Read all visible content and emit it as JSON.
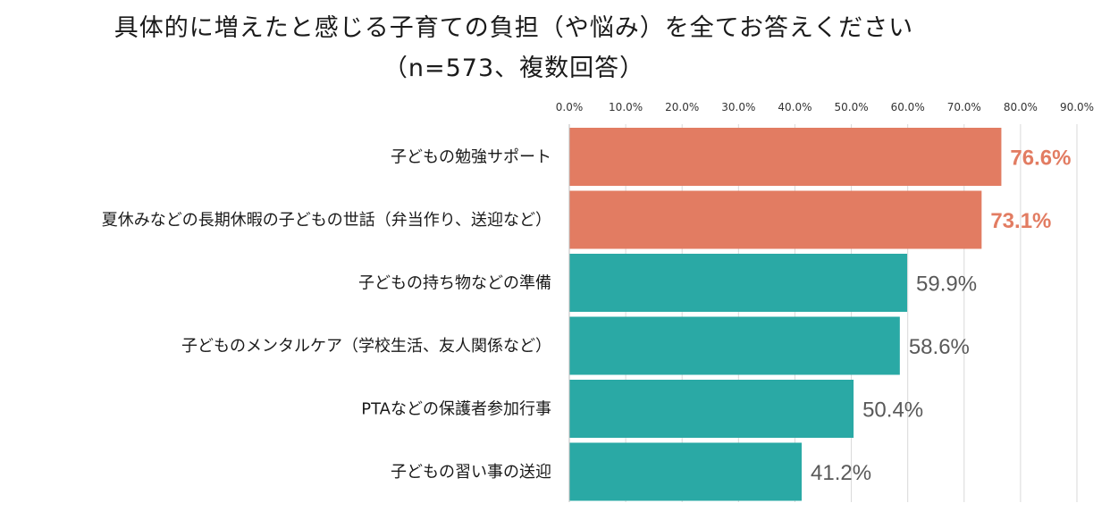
{
  "chart_data": {
    "type": "bar",
    "orientation": "horizontal",
    "title": "具体的に増えたと感じる子育ての負担（や悩み）を全てお答えください",
    "subtitle": "（n=573、複数回答）",
    "xlim": [
      0,
      90
    ],
    "ticks": [
      "0.0%",
      "10.0%",
      "20.0%",
      "30.0%",
      "40.0%",
      "50.0%",
      "60.0%",
      "70.0%",
      "80.0%",
      "90.0%"
    ],
    "grid": true,
    "categories": [
      "子どもの勉強サポート",
      "夏休みなどの長期休暇の子どもの世話（弁当作り、送迎など）",
      "子どもの持ち物などの準備",
      "子どものメンタルケア（学校生活、友人関係など）",
      "PTAなどの保護者参加行事",
      "子どもの習い事の送迎"
    ],
    "values": [
      76.6,
      73.1,
      59.9,
      58.6,
      50.4,
      41.2
    ],
    "value_labels": [
      "76.6%",
      "73.1%",
      "59.9%",
      "58.6%",
      "50.4%",
      "41.2%"
    ],
    "highlight": [
      true,
      true,
      false,
      false,
      false,
      false
    ],
    "colors": {
      "highlight": "#e27c62",
      "normal": "#2aa9a5",
      "normal_label": "#595959"
    }
  }
}
